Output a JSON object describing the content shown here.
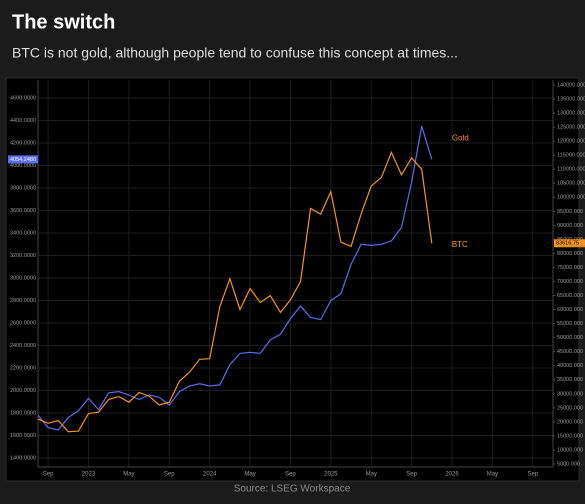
{
  "chart_data": {
    "type": "line",
    "title": "The switch",
    "subtitle": "BTC is not gold, although people tend to confuse this concept at times...",
    "source": "Source: LSEG Workspace",
    "grid": true,
    "x": [
      "2022-08",
      "2022-09",
      "2022-10",
      "2022-11",
      "2022-12",
      "2023-01",
      "2023-02",
      "2023-03",
      "2023-04",
      "2023-05",
      "2023-06",
      "2023-07",
      "2023-08",
      "2023-09",
      "2023-10",
      "2023-11",
      "2023-12",
      "2024-01",
      "2024-02",
      "2024-03",
      "2024-04",
      "2024-05",
      "2024-06",
      "2024-07",
      "2024-08",
      "2024-09",
      "2024-10",
      "2024-11",
      "2024-12",
      "2025-01",
      "2025-02",
      "2025-03",
      "2025-04",
      "2025-05",
      "2025-06",
      "2025-07",
      "2025-08",
      "2025-09",
      "2025-10",
      "2025-11"
    ],
    "xlim": [
      "2022-08",
      "2026-11"
    ],
    "xticks": [
      {
        "value": "2022-09",
        "label": "Sep"
      },
      {
        "value": "2023-01",
        "label": "2023"
      },
      {
        "value": "2023-05",
        "label": "May"
      },
      {
        "value": "2023-09",
        "label": "Sep"
      },
      {
        "value": "2024-01",
        "label": "2024"
      },
      {
        "value": "2024-05",
        "label": "May"
      },
      {
        "value": "2024-09",
        "label": "Sep"
      },
      {
        "value": "2025-01",
        "label": "2025"
      },
      {
        "value": "2025-05",
        "label": "May"
      },
      {
        "value": "2025-09",
        "label": "Sep"
      },
      {
        "value": "2026-01",
        "label": "2026"
      },
      {
        "value": "2026-05",
        "label": "May"
      },
      {
        "value": "2026-09",
        "label": "Sep"
      }
    ],
    "ylim": [
      1320,
      4760
    ],
    "yticks": [
      {
        "value": 1400,
        "label": "1400.0000"
      },
      {
        "value": 1600,
        "label": "1600.0000"
      },
      {
        "value": 1800,
        "label": "1800.0000"
      },
      {
        "value": 2000,
        "label": "2000.0000"
      },
      {
        "value": 2200,
        "label": "2200.0000"
      },
      {
        "value": 2400,
        "label": "2400.0000"
      },
      {
        "value": 2600,
        "label": "2600.0000"
      },
      {
        "value": 2800,
        "label": "2800.0000"
      },
      {
        "value": 3000,
        "label": "3000.0000"
      },
      {
        "value": 3200,
        "label": "3200.0000"
      },
      {
        "value": 3400,
        "label": "3400.0000"
      },
      {
        "value": 3600,
        "label": "3600.0000"
      },
      {
        "value": 3800,
        "label": "3800.0000"
      },
      {
        "value": 4000,
        "label": "4000.0000"
      },
      {
        "value": 4200,
        "label": "4200.0000"
      },
      {
        "value": 4400,
        "label": "4400.0000"
      },
      {
        "value": 4600,
        "label": "4600.0000"
      }
    ],
    "y2lim": [
      3930,
      141780
    ],
    "y2ticks": [
      {
        "value": 5000,
        "label": "5000.000"
      },
      {
        "value": 10000,
        "label": "10000.000"
      },
      {
        "value": 15000,
        "label": "15000.000"
      },
      {
        "value": 20000,
        "label": "20000.000"
      },
      {
        "value": 25000,
        "label": "25000.000"
      },
      {
        "value": 30000,
        "label": "30000.000"
      },
      {
        "value": 35000,
        "label": "35000.000"
      },
      {
        "value": 40000,
        "label": "40000.000"
      },
      {
        "value": 45000,
        "label": "45000.000"
      },
      {
        "value": 50000,
        "label": "50000.000"
      },
      {
        "value": 55000,
        "label": "55000.000"
      },
      {
        "value": 60000,
        "label": "60000.000"
      },
      {
        "value": 65000,
        "label": "65000.000"
      },
      {
        "value": 70000,
        "label": "70000.000"
      },
      {
        "value": 75000,
        "label": "75000.000"
      },
      {
        "value": 80000,
        "label": "80000.000"
      },
      {
        "value": 85000,
        "label": "85000.000"
      },
      {
        "value": 90000,
        "label": "90000.000"
      },
      {
        "value": 95000,
        "label": "95000.000"
      },
      {
        "value": 100000,
        "label": "100000.000"
      },
      {
        "value": 105000,
        "label": "105000.000"
      },
      {
        "value": 110000,
        "label": "110000.000"
      },
      {
        "value": 115000,
        "label": "115000.000"
      },
      {
        "value": 120000,
        "label": "120000.000"
      },
      {
        "value": 125000,
        "label": "125000.000"
      },
      {
        "value": 130000,
        "label": "130000.000"
      },
      {
        "value": 135000,
        "label": "135000.000"
      },
      {
        "value": 140000,
        "label": "140000.000"
      }
    ],
    "series": [
      {
        "name": "Gold",
        "color": "#5b6cf0",
        "label_color": "#f7931a",
        "label_value": 4240,
        "values": [
          1780,
          1670,
          1650,
          1760,
          1820,
          1930,
          1830,
          1980,
          1990,
          1960,
          1920,
          1960,
          1940,
          1870,
          1990,
          2040,
          2060,
          2040,
          2050,
          2230,
          2330,
          2340,
          2330,
          2450,
          2500,
          2640,
          2750,
          2650,
          2630,
          2800,
          2860,
          3120,
          3300,
          3290,
          3300,
          3330,
          3450,
          3850,
          4350,
          4054.248
        ]
      },
      {
        "name": "BTC",
        "color": "#f7931a",
        "label_color": "#f7931a",
        "axis": "y2",
        "label_value": 83000,
        "values": [
          21000,
          19500,
          20500,
          16500,
          16700,
          23000,
          23500,
          28000,
          29000,
          27000,
          30500,
          29200,
          26000,
          27000,
          34500,
          37700,
          42300,
          42500,
          61000,
          71000,
          60000,
          67500,
          62500,
          65000,
          59000,
          63500,
          70000,
          96000,
          94000,
          102000,
          84000,
          82500,
          94000,
          104000,
          107000,
          116000,
          108000,
          114000,
          110000,
          83616.75
        ]
      }
    ],
    "annotations": [
      {
        "text": "4054.2480",
        "axis": "y",
        "value": 4054.248,
        "color": "#5b6cf0"
      },
      {
        "text": "83616.75",
        "axis": "y2",
        "value": 83616.75,
        "color": "#f7931a"
      }
    ]
  }
}
